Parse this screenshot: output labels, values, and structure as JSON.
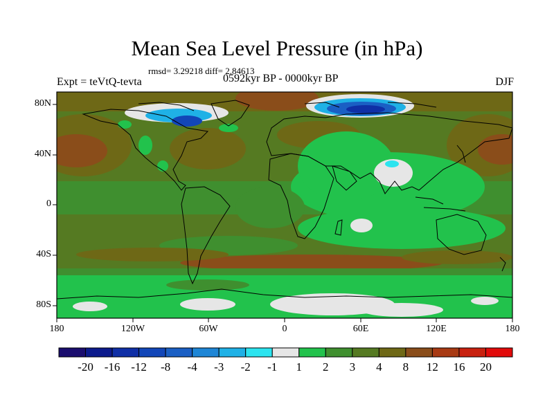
{
  "title": "Mean Sea Level Pressure (in hPa)",
  "stats": "rmsd= 3.29218 diff= 2.84613",
  "experiment": "Expt = teVtQ-tevta",
  "period": "0592kyr BP - 0000kyr BP",
  "season": "DJF",
  "lat_ticks": [
    "80N",
    "40N",
    "0",
    "40S",
    "80S"
  ],
  "lon_ticks": [
    "180",
    "120W",
    "60W",
    "0",
    "60E",
    "120E",
    "180"
  ],
  "colorbar": {
    "labels": [
      "-20",
      "-16",
      "-12",
      "-8",
      "-4",
      "-3",
      "-2",
      "-1",
      "1",
      "2",
      "3",
      "4",
      "8",
      "12",
      "16",
      "20"
    ],
    "colors": [
      "#1a0d6e",
      "#0c1a8c",
      "#0f2fa6",
      "#1246b8",
      "#1a5fc4",
      "#1e86d6",
      "#1fb1e6",
      "#2ce4ef",
      "#e6e6e6",
      "#22c24c",
      "#3f8f2f",
      "#557a22",
      "#6e6816",
      "#8a4d1a",
      "#a83a13",
      "#c8210f",
      "#e10b0b"
    ]
  },
  "legend_colors": {
    "ocean_background": "#557a22",
    "land_background": "#3f8f2f",
    "low_anomaly": "#22c24c",
    "high_anomaly": "#8a4d1a"
  }
}
